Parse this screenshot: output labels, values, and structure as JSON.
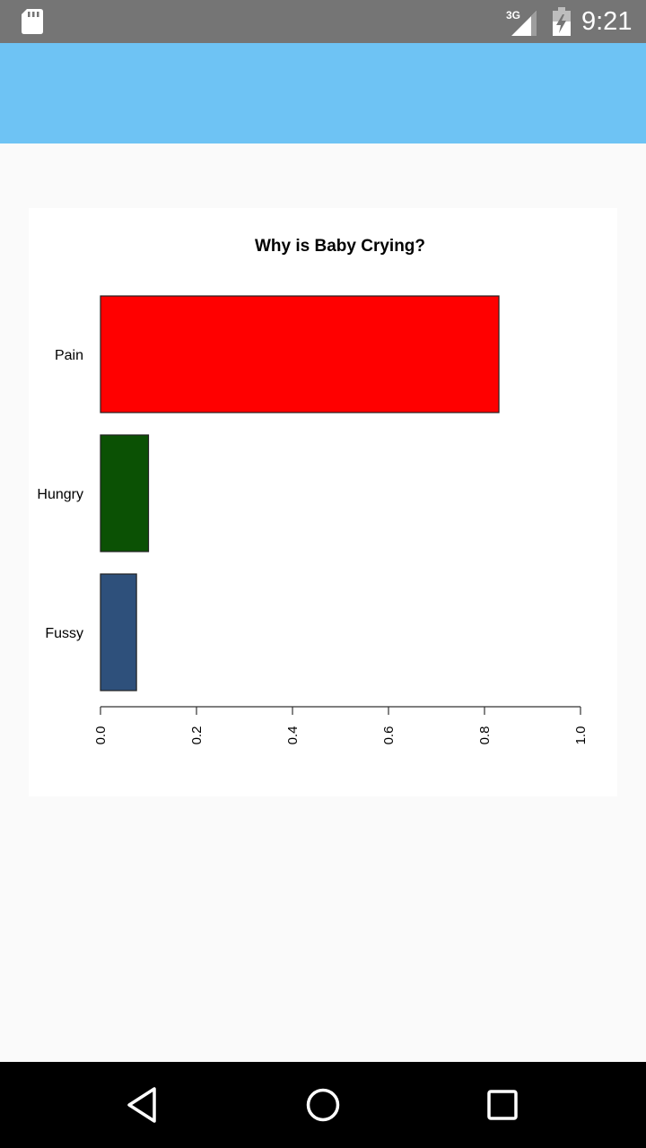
{
  "status_bar": {
    "time": "9:21",
    "network": "3G",
    "icons": [
      "sd-card-icon",
      "signal-3g-icon",
      "battery-charging-icon"
    ]
  },
  "colors": {
    "status_bar": "#757575",
    "app_bar": "#6ec3f4",
    "background": "#fafafa",
    "card": "#ffffff",
    "nav_bar": "#000000"
  },
  "chart_data": {
    "type": "bar",
    "orientation": "horizontal",
    "title": "Why is Baby Crying?",
    "xlabel": "",
    "ylabel": "",
    "categories": [
      "Pain",
      "Hungry",
      "Fussy"
    ],
    "values": [
      0.83,
      0.1,
      0.075
    ],
    "colors": [
      "#ff0000",
      "#0b5104",
      "#2e507b"
    ],
    "xlim": [
      0,
      1.0
    ],
    "x_ticks": [
      "0.0",
      "0.2",
      "0.4",
      "0.6",
      "0.8",
      "1.0"
    ],
    "grid": false,
    "legend": "none"
  },
  "nav_bar": {
    "buttons": [
      "back-icon",
      "home-icon",
      "recents-icon"
    ]
  }
}
